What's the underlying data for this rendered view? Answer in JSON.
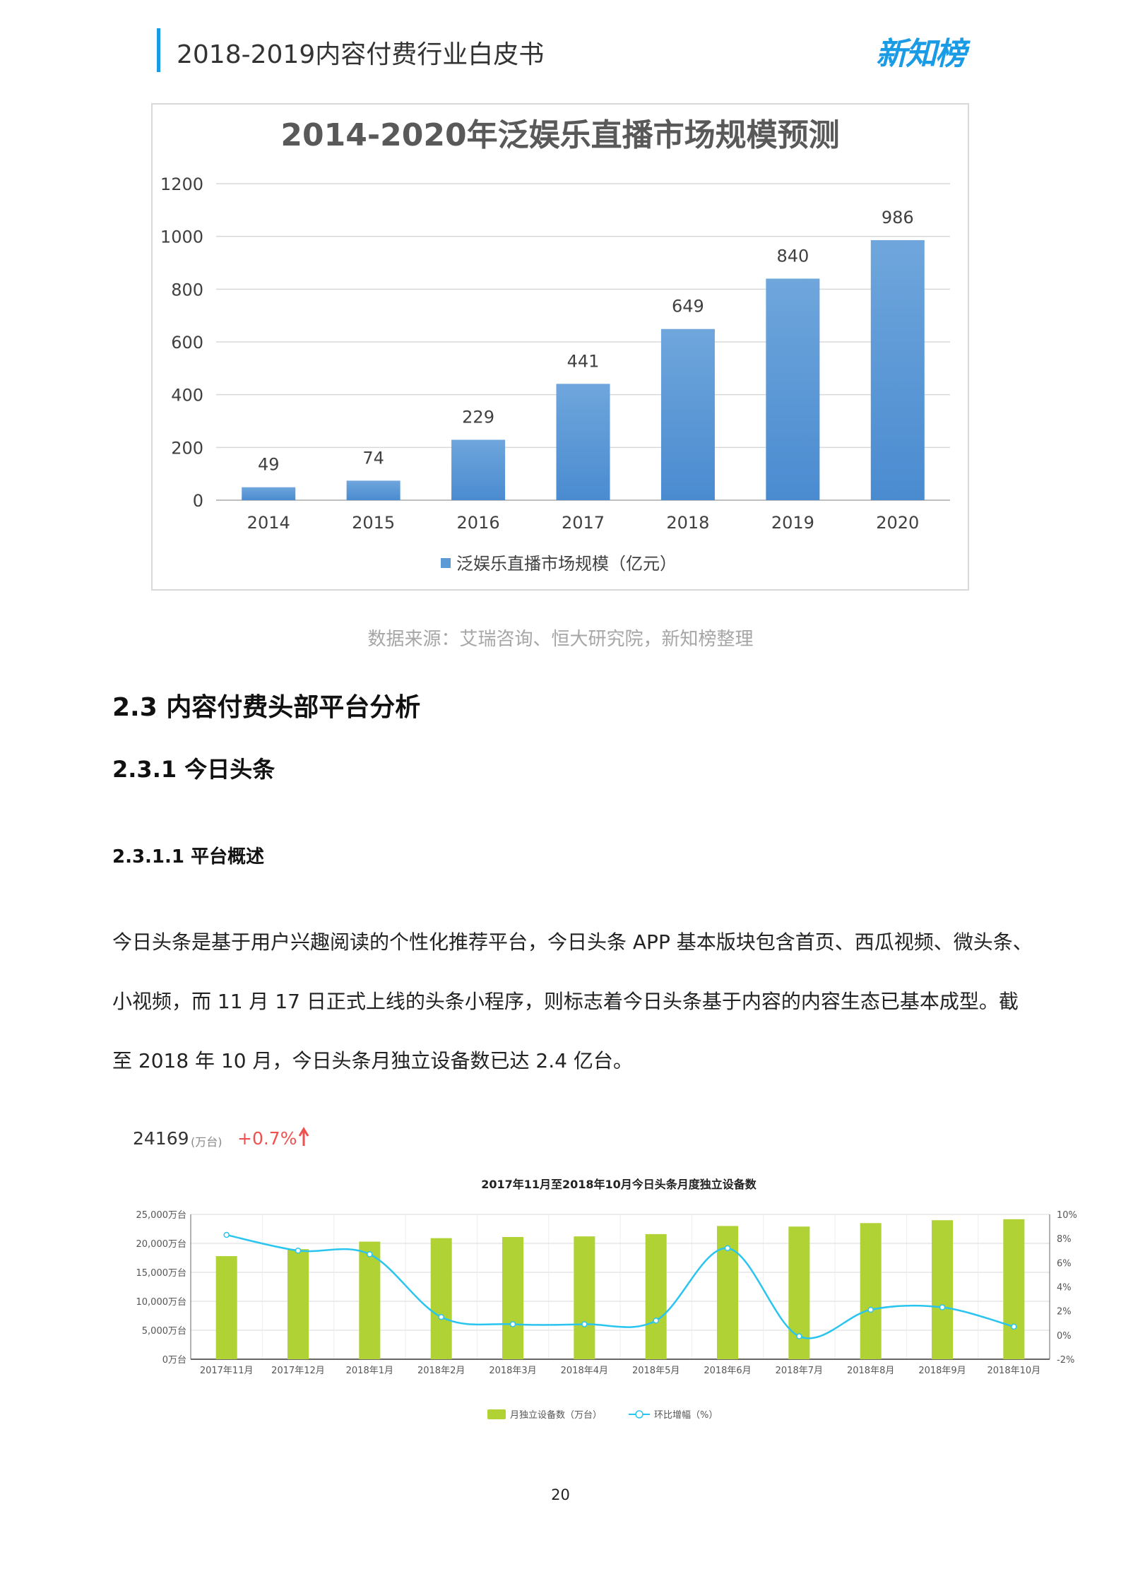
{
  "header": {
    "title": "2018-2019内容付费行业白皮书",
    "logo": "新知榜",
    "accent": "#1a9be6"
  },
  "chart_data": [
    {
      "type": "bar",
      "title": "2014-2020年泛娱乐直播市场规模预测",
      "categories": [
        "2014",
        "2015",
        "2016",
        "2017",
        "2018",
        "2019",
        "2020"
      ],
      "series": [
        {
          "name": "泛娱乐直播市场规模（亿元）",
          "values": [
            49,
            74,
            229,
            441,
            649,
            840,
            986
          ],
          "color": "#5b9bd5"
        }
      ],
      "ylim": [
        0,
        1200
      ],
      "yticks": [
        0,
        200,
        400,
        600,
        800,
        1000,
        1200
      ],
      "grid": true,
      "legend": "bottom"
    },
    {
      "type": "bar+line",
      "title": "2017年11月至2018年10月今日头条月度独立设备数",
      "categories": [
        "2017年11月",
        "2017年12月",
        "2018年1月",
        "2018年2月",
        "2018年3月",
        "2018年4月",
        "2018年5月",
        "2018年6月",
        "2018年7月",
        "2018年8月",
        "2018年9月",
        "2018年10月"
      ],
      "series": [
        {
          "name": "月独立设备数（万台）",
          "type": "bar",
          "axis": "left",
          "color": "#b0d235",
          "values": [
            17800,
            19000,
            20300,
            20900,
            21100,
            21200,
            21600,
            23000,
            22900,
            23500,
            24000,
            24169
          ]
        },
        {
          "name": "环比增幅（%）",
          "type": "line",
          "axis": "right",
          "color": "#29c5f0",
          "values": [
            8.3,
            7.0,
            6.7,
            1.5,
            0.9,
            0.9,
            1.2,
            7.2,
            -0.1,
            2.1,
            2.3,
            0.7
          ]
        }
      ],
      "ylim_left": [
        0,
        25000
      ],
      "yticks_left": [
        "0万台",
        "5,000万台",
        "10,000万台",
        "15,000万台",
        "20,000万台",
        "25,000万台"
      ],
      "ylim_right": [
        -2,
        10
      ],
      "yticks_right": [
        "-2%",
        "0%",
        "2%",
        "4%",
        "6%",
        "8%",
        "10%"
      ],
      "grid": true,
      "legend": "bottom",
      "summary": {
        "value": "24169",
        "unit": "(万台)",
        "change": "+0.7%",
        "change_color": "#f05050"
      }
    }
  ],
  "source": "数据来源：艾瑞咨询、恒大研究院，新知榜整理",
  "headings": {
    "h23": "2.3 内容付费头部平台分析",
    "h231": "2.3.1 今日头条",
    "h2311": "2.3.1.1 平台概述"
  },
  "paragraph": [
    "今日头条是基于用户兴趣阅读的个性化推荐平台，今日头条 APP 基本版块包含首页、西瓜视频、微头条、",
    "小视频，而 11 月 17 日正式上线的头条小程序，则标志着今日头条基于内容的内容生态已基本成型。截",
    "至 2018 年 10 月，今日头条月独立设备数已达 2.4 亿台。"
  ],
  "page_number": "20"
}
